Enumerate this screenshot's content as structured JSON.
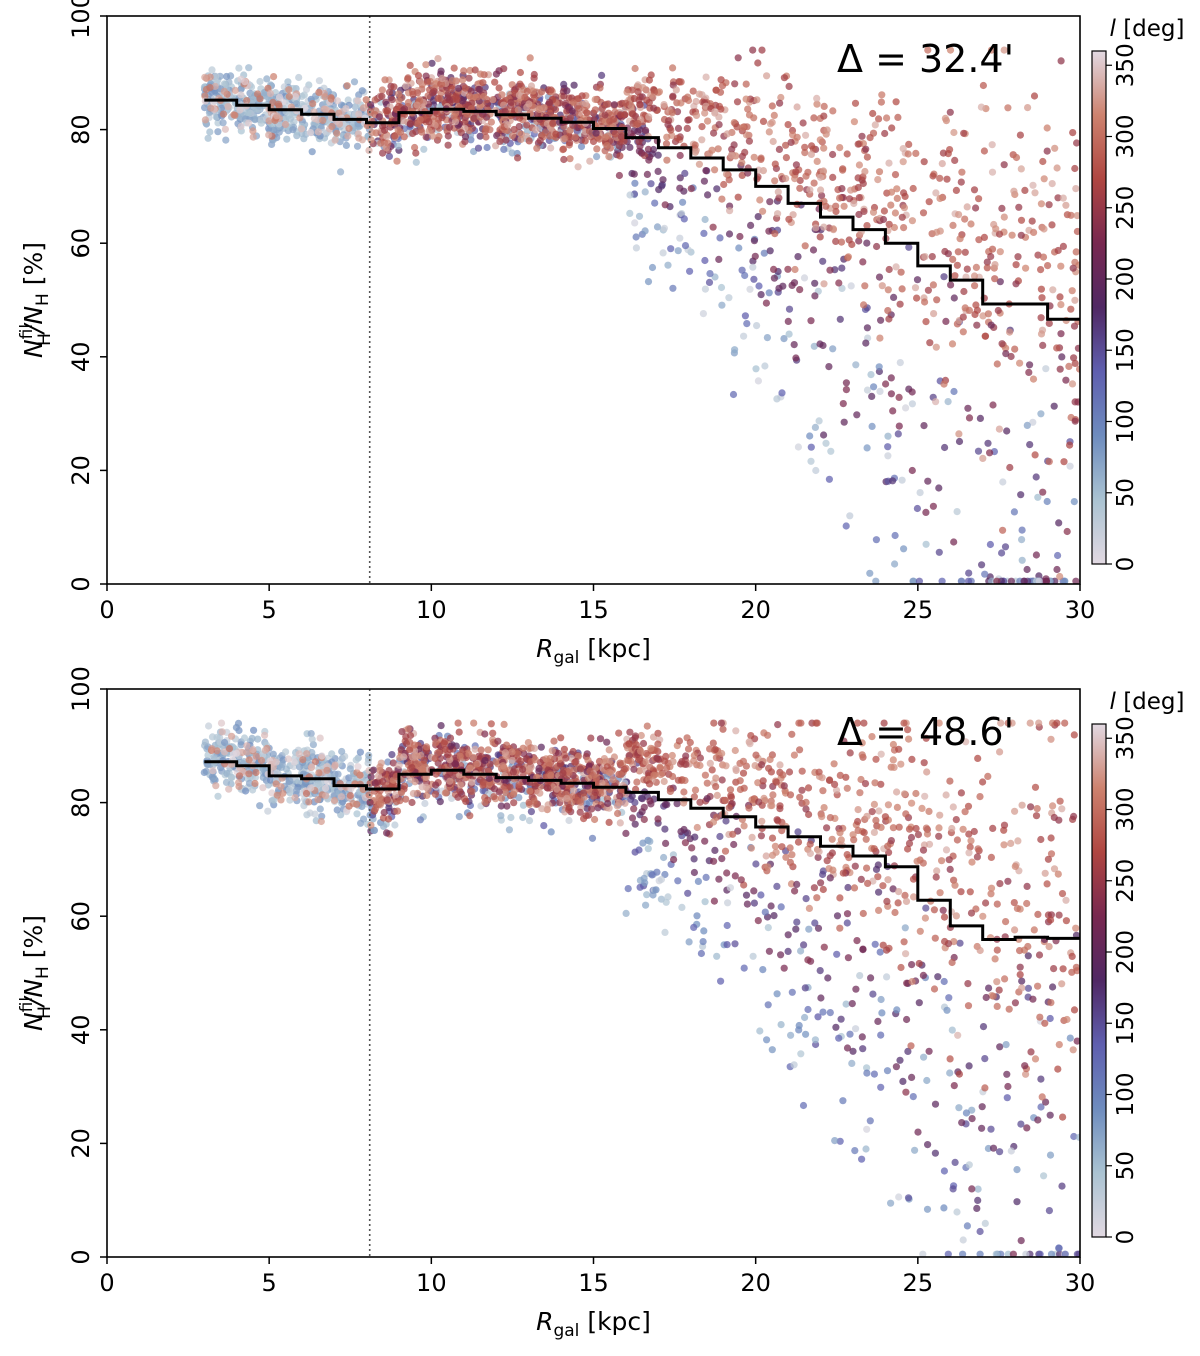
{
  "chart_data": [
    {
      "type": "scatter",
      "annotation": "Δ = 32.4'",
      "xlabel_main": "R",
      "xlabel_sub": "gal",
      "xlabel_unit": " [kpc]",
      "ylabel_main": "N",
      "ylabel_sup": "fil",
      "ylabel_sub": "H",
      "ylabel_den": "/N",
      "ylabel_unit": " [%]",
      "xlim": [
        0,
        30
      ],
      "ylim": [
        0,
        100
      ],
      "xticks": [
        "0",
        "5",
        "10",
        "15",
        "20",
        "25",
        "30"
      ],
      "yticks": [
        "0",
        "20",
        "40",
        "60",
        "80",
        "100"
      ],
      "reference_line": {
        "x": 8.1,
        "style": "dotted"
      },
      "colorbar": {
        "label_main": "l",
        "label_unit": " [deg]",
        "range": [
          0,
          360
        ],
        "ticks": [
          "0",
          "50",
          "100",
          "150",
          "200",
          "250",
          "300",
          "350"
        ],
        "colormap": "twilight"
      },
      "median_step": {
        "x": [
          3,
          4,
          5,
          6,
          7,
          8,
          9,
          10,
          11,
          12,
          13,
          14,
          15,
          16,
          17,
          18,
          19,
          20,
          21,
          22,
          23,
          24,
          25,
          26,
          27,
          28,
          29,
          30
        ],
        "y": [
          85.2,
          84.3,
          83.5,
          82.7,
          81.8,
          81.2,
          83.0,
          83.6,
          83.2,
          82.6,
          82.0,
          81.3,
          80.2,
          78.6,
          76.8,
          75.0,
          72.9,
          70.0,
          67.0,
          64.6,
          62.4,
          60.0,
          56.0,
          53.5,
          49.3,
          49.3,
          46.6,
          46.6
        ]
      },
      "scatter": {
        "description": "~2600 points; x = Galactocentric radius, y = filamentary fraction, colour = Galactic longitude l",
        "seed": 11
      }
    },
    {
      "type": "scatter",
      "annotation": "Δ = 48.6'",
      "xlabel_main": "R",
      "xlabel_sub": "gal",
      "xlabel_unit": " [kpc]",
      "ylabel_main": "N",
      "ylabel_sup": "fil",
      "ylabel_sub": "H",
      "ylabel_den": "/N",
      "ylabel_unit": " [%]",
      "xlim": [
        0,
        30
      ],
      "ylim": [
        0,
        100
      ],
      "xticks": [
        "0",
        "5",
        "10",
        "15",
        "20",
        "25",
        "30"
      ],
      "yticks": [
        "0",
        "20",
        "40",
        "60",
        "80",
        "100"
      ],
      "reference_line": {
        "x": 8.1,
        "style": "dotted"
      },
      "colorbar": {
        "label_main": "l",
        "label_unit": " [deg]",
        "range": [
          0,
          360
        ],
        "ticks": [
          "0",
          "50",
          "100",
          "150",
          "200",
          "250",
          "300",
          "350"
        ],
        "colormap": "twilight"
      },
      "median_step": {
        "x": [
          3,
          4,
          5,
          6,
          7,
          8,
          9,
          10,
          11,
          12,
          13,
          14,
          15,
          16,
          17,
          18,
          19,
          20,
          21,
          22,
          23,
          24,
          25,
          26,
          27,
          28,
          29,
          30
        ],
        "y": [
          87.2,
          86.5,
          84.7,
          84.2,
          83.0,
          82.4,
          85.0,
          85.7,
          85.0,
          84.4,
          83.9,
          83.4,
          82.7,
          81.8,
          80.5,
          79.0,
          77.5,
          75.7,
          74.0,
          72.3,
          70.6,
          68.7,
          62.8,
          58.3,
          55.9,
          56.3,
          56.1,
          56.1
        ]
      },
      "scatter": {
        "description": "~2600 points; x = Galactocentric radius, y = filamentary fraction, colour = Galactic longitude l",
        "seed": 29
      }
    }
  ]
}
